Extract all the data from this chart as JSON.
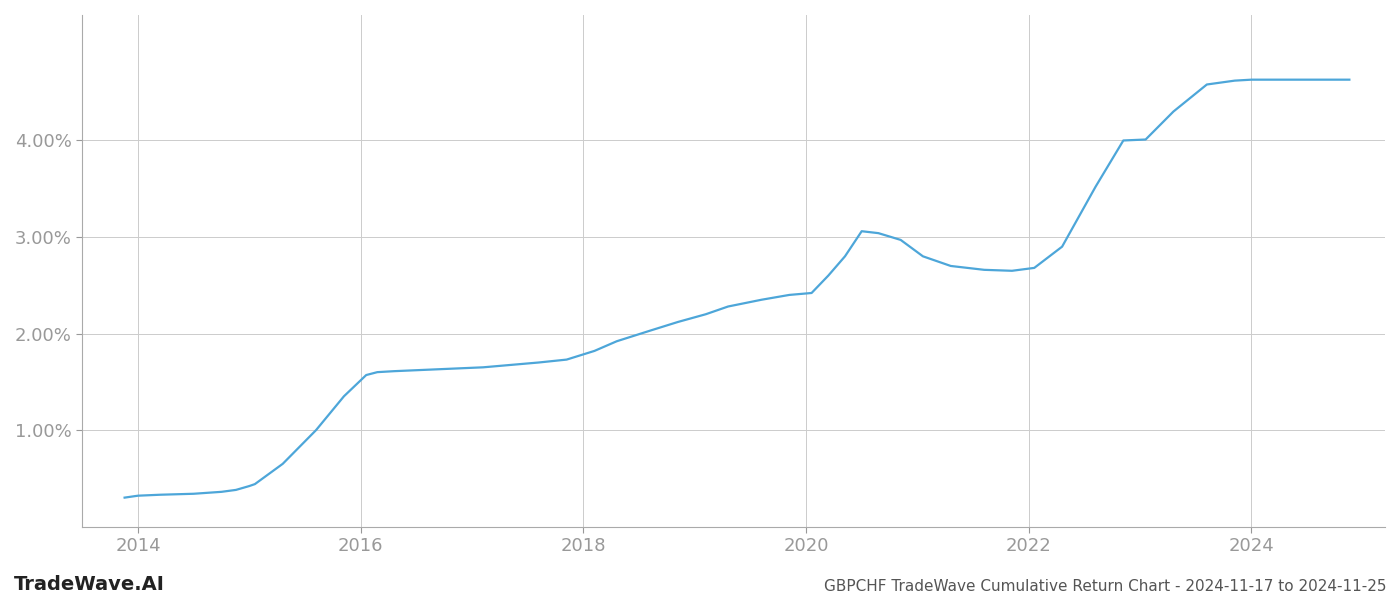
{
  "title": "GBPCHF TradeWave Cumulative Return Chart - 2024-11-17 to 2024-11-25",
  "watermark": "TradeWave.AI",
  "line_color": "#4da6d9",
  "background_color": "#ffffff",
  "grid_color": "#cccccc",
  "x_values": [
    2013.88,
    2014.0,
    2014.2,
    2014.5,
    2014.75,
    2014.88,
    2015.0,
    2015.05,
    2015.3,
    2015.6,
    2015.85,
    2016.05,
    2016.15,
    2016.3,
    2016.5,
    2016.7,
    2016.9,
    2017.1,
    2017.3,
    2017.6,
    2017.85,
    2018.1,
    2018.3,
    2018.6,
    2018.85,
    2019.1,
    2019.3,
    2019.6,
    2019.85,
    2020.05,
    2020.2,
    2020.35,
    2020.5,
    2020.65,
    2020.85,
    2021.05,
    2021.3,
    2021.6,
    2021.85,
    2022.05,
    2022.3,
    2022.6,
    2022.85,
    2023.05,
    2023.3,
    2023.6,
    2023.85,
    2024.0,
    2024.5,
    2024.88
  ],
  "y_values": [
    0.3,
    0.32,
    0.33,
    0.34,
    0.36,
    0.38,
    0.42,
    0.44,
    0.65,
    1.0,
    1.35,
    1.57,
    1.6,
    1.61,
    1.62,
    1.63,
    1.64,
    1.65,
    1.67,
    1.7,
    1.73,
    1.82,
    1.92,
    2.03,
    2.12,
    2.2,
    2.28,
    2.35,
    2.4,
    2.42,
    2.6,
    2.8,
    3.06,
    3.04,
    2.97,
    2.8,
    2.7,
    2.66,
    2.65,
    2.68,
    2.9,
    3.52,
    4.0,
    4.01,
    4.3,
    4.58,
    4.62,
    4.63,
    4.63,
    4.63
  ],
  "xlim": [
    2013.5,
    2025.2
  ],
  "ylim": [
    0.0,
    5.3
  ],
  "xticks": [
    2014,
    2016,
    2018,
    2020,
    2022,
    2024
  ],
  "ytick_values": [
    1.0,
    2.0,
    3.0,
    4.0
  ],
  "ytick_labels": [
    "1.00%",
    "2.00%",
    "3.00%",
    "4.00%"
  ],
  "tick_color": "#999999",
  "label_fontsize": 13,
  "watermark_fontsize": 14,
  "title_fontsize": 11,
  "line_width": 1.6
}
